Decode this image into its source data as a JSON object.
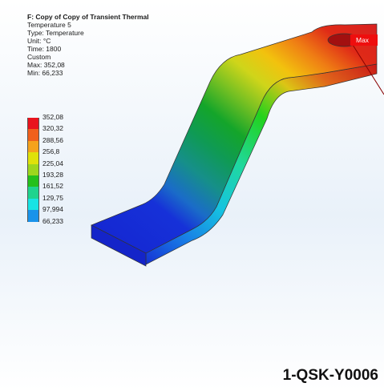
{
  "result_info": {
    "title": "F: Copy of Copy of Transient Thermal",
    "result_name": "Temperature 5",
    "type": "Type: Temperature",
    "unit": "Unit: °C",
    "time": "Time: 1800",
    "mode": "Custom",
    "max": "Max: 352,08",
    "min": "Min: 66,233"
  },
  "legend": [
    {
      "label": "352,08",
      "color": "#e8141e"
    },
    {
      "label": "320,32",
      "color": "#f0601c"
    },
    {
      "label": "288,56",
      "color": "#f5a21c"
    },
    {
      "label": "256,8",
      "color": "#dfe10a"
    },
    {
      "label": "225,04",
      "color": "#9dd61d"
    },
    {
      "label": "193,28",
      "color": "#24c01b"
    },
    {
      "label": "161,52",
      "color": "#1fd38e"
    },
    {
      "label": "129,75",
      "color": "#18e3e4"
    },
    {
      "label": "97,994",
      "color": "#1a93ea"
    },
    {
      "label": "66,233",
      "color": "#1215d4"
    }
  ],
  "probe": {
    "label": "Max"
  },
  "watermark": "1-QSK-Y0006",
  "colors": {
    "red": "#e11515",
    "orange": "#ee8a17",
    "yellow": "#d3de10",
    "green": "#0ea829",
    "teal": "#13b79a",
    "blue": "#1630d9"
  }
}
